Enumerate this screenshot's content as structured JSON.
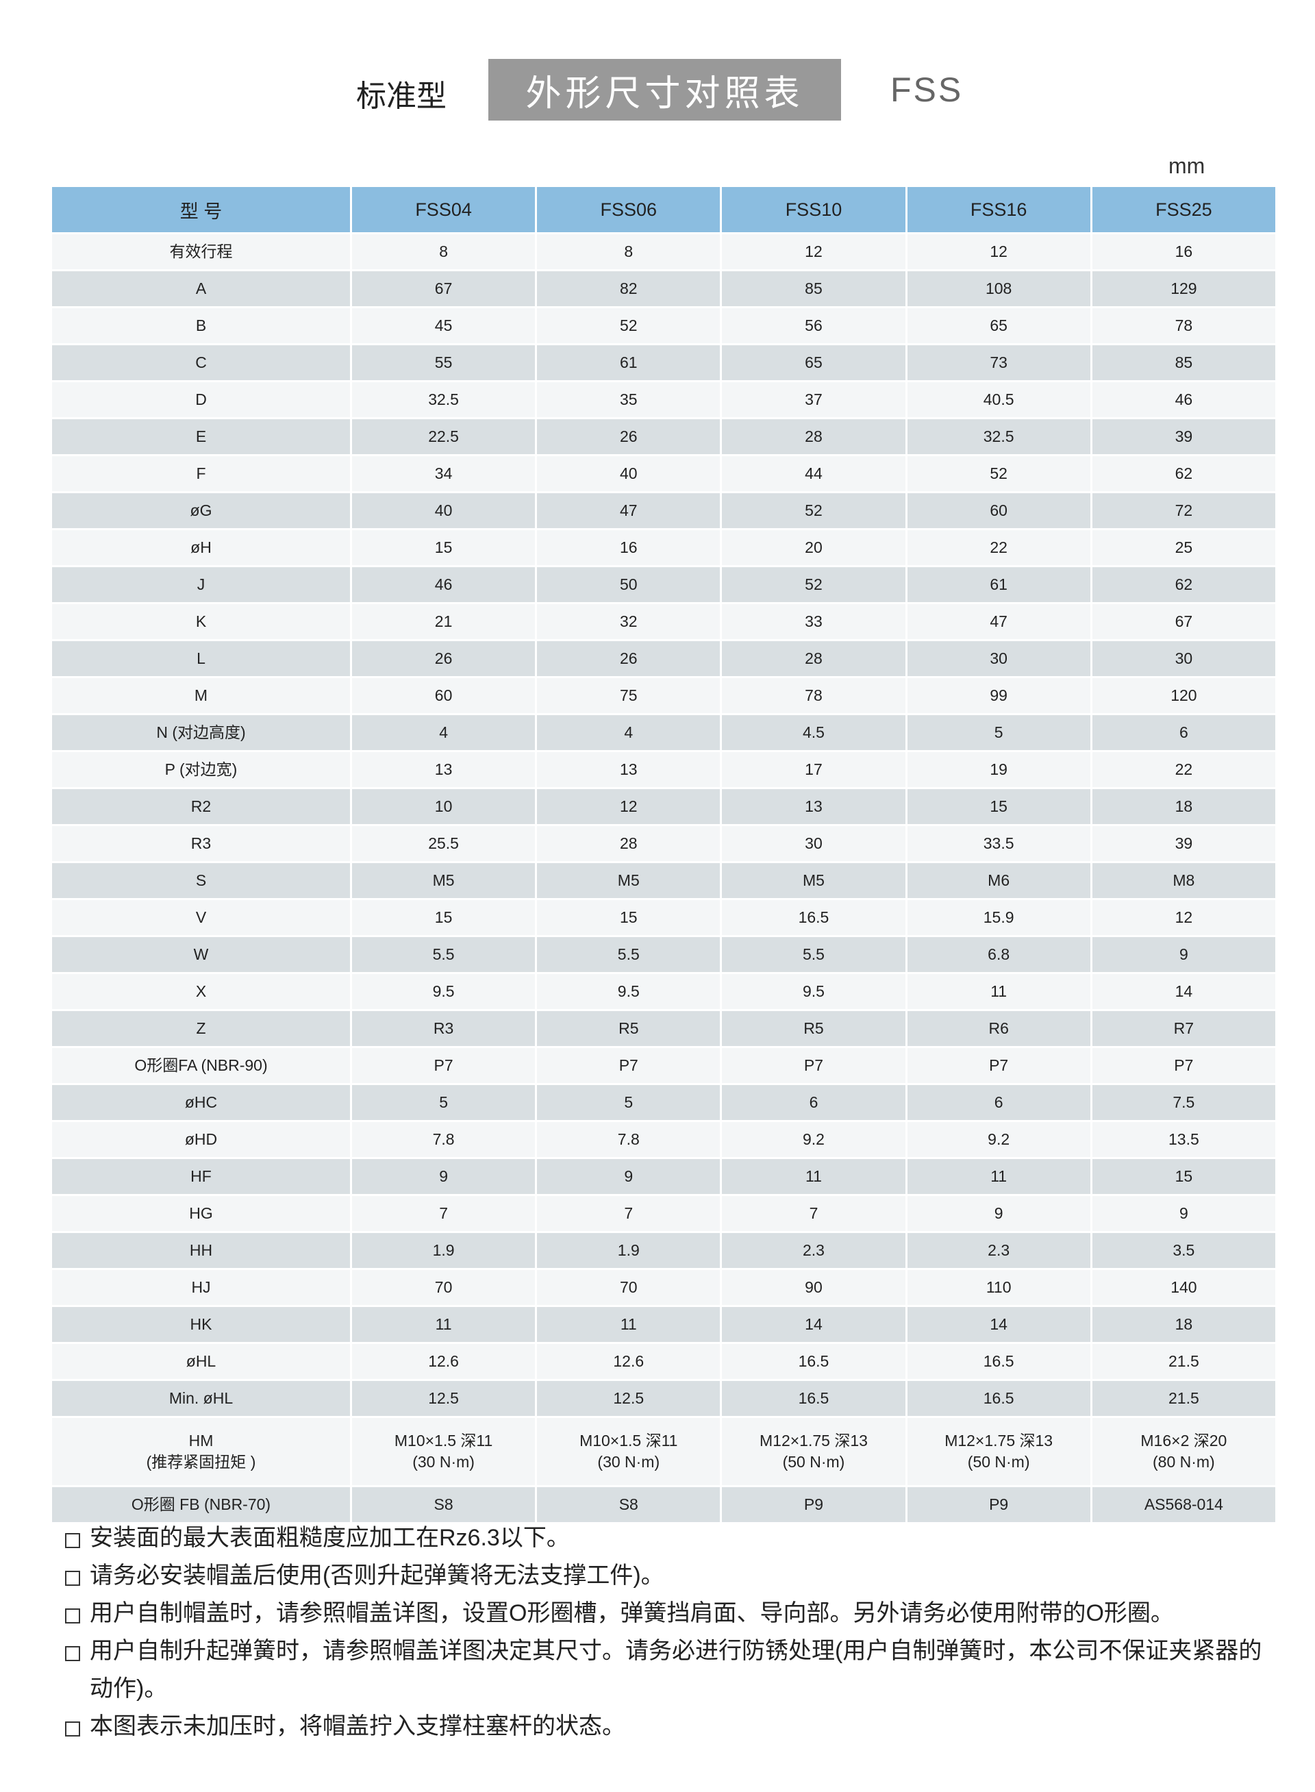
{
  "title": {
    "left": "标准型",
    "main": "外形尺寸对照表",
    "right": "FSS"
  },
  "unit": "mm",
  "colors": {
    "header": "#8bbde0",
    "row_light": "#f4f6f7",
    "row_dark": "#d9dfe2",
    "title_box": "#999999"
  },
  "table": {
    "headers": [
      "型  号",
      "FSS04",
      "FSS06",
      "FSS10",
      "FSS16",
      "FSS25"
    ],
    "rows": [
      {
        "label": "有效行程",
        "values": [
          "8",
          "8",
          "12",
          "12",
          "16"
        ]
      },
      {
        "label": "A",
        "values": [
          "67",
          "82",
          "85",
          "108",
          "129"
        ]
      },
      {
        "label": "B",
        "values": [
          "45",
          "52",
          "56",
          "65",
          "78"
        ]
      },
      {
        "label": "C",
        "values": [
          "55",
          "61",
          "65",
          "73",
          "85"
        ]
      },
      {
        "label": "D",
        "values": [
          "32.5",
          "35",
          "37",
          "40.5",
          "46"
        ]
      },
      {
        "label": "E",
        "values": [
          "22.5",
          "26",
          "28",
          "32.5",
          "39"
        ]
      },
      {
        "label": "F",
        "values": [
          "34",
          "40",
          "44",
          "52",
          "62"
        ]
      },
      {
        "label": "øG",
        "values": [
          "40",
          "47",
          "52",
          "60",
          "72"
        ]
      },
      {
        "label": "øH",
        "values": [
          "15",
          "16",
          "20",
          "22",
          "25"
        ]
      },
      {
        "label": "J",
        "values": [
          "46",
          "50",
          "52",
          "61",
          "62"
        ]
      },
      {
        "label": "K",
        "values": [
          "21",
          "32",
          "33",
          "47",
          "67"
        ]
      },
      {
        "label": "L",
        "values": [
          "26",
          "26",
          "28",
          "30",
          "30"
        ]
      },
      {
        "label": "M",
        "values": [
          "60",
          "75",
          "78",
          "99",
          "120"
        ]
      },
      {
        "label": "N (对边高度)",
        "values": [
          "4",
          "4",
          "4.5",
          "5",
          "6"
        ]
      },
      {
        "label": "P (对边宽)",
        "values": [
          "13",
          "13",
          "17",
          "19",
          "22"
        ]
      },
      {
        "label": "R2",
        "values": [
          "10",
          "12",
          "13",
          "15",
          "18"
        ]
      },
      {
        "label": "R3",
        "values": [
          "25.5",
          "28",
          "30",
          "33.5",
          "39"
        ]
      },
      {
        "label": "S",
        "values": [
          "M5",
          "M5",
          "M5",
          "M6",
          "M8"
        ]
      },
      {
        "label": "V",
        "values": [
          "15",
          "15",
          "16.5",
          "15.9",
          "12"
        ]
      },
      {
        "label": "W",
        "values": [
          "5.5",
          "5.5",
          "5.5",
          "6.8",
          "9"
        ]
      },
      {
        "label": "X",
        "values": [
          "9.5",
          "9.5",
          "9.5",
          "11",
          "14"
        ]
      },
      {
        "label": "Z",
        "values": [
          "R3",
          "R5",
          "R5",
          "R6",
          "R7"
        ]
      },
      {
        "label": "O形圈FA (NBR-90)",
        "values": [
          "P7",
          "P7",
          "P7",
          "P7",
          "P7"
        ]
      },
      {
        "label": "øHC",
        "values": [
          "5",
          "5",
          "6",
          "6",
          "7.5"
        ]
      },
      {
        "label": "øHD",
        "values": [
          "7.8",
          "7.8",
          "9.2",
          "9.2",
          "13.5"
        ]
      },
      {
        "label": "HF",
        "values": [
          "9",
          "9",
          "11",
          "11",
          "15"
        ]
      },
      {
        "label": "HG",
        "values": [
          "7",
          "7",
          "7",
          "9",
          "9"
        ]
      },
      {
        "label": "HH",
        "values": [
          "1.9",
          "1.9",
          "2.3",
          "2.3",
          "3.5"
        ]
      },
      {
        "label": "HJ",
        "values": [
          "70",
          "70",
          "90",
          "110",
          "140"
        ]
      },
      {
        "label": "HK",
        "values": [
          "11",
          "11",
          "14",
          "14",
          "18"
        ]
      },
      {
        "label": "øHL",
        "values": [
          "12.6",
          "12.6",
          "16.5",
          "16.5",
          "21.5"
        ]
      },
      {
        "label": "Min. øHL",
        "values": [
          "12.5",
          "12.5",
          "16.5",
          "16.5",
          "21.5"
        ]
      }
    ],
    "hm_row": {
      "label": "HM",
      "sublabel": "(推荐紧固扭矩 )",
      "values": [
        "M10×1.5 深11",
        "M10×1.5 深11",
        "M12×1.75 深13",
        "M12×1.75 深13",
        "M16×2 深20"
      ],
      "subvalues": [
        "(30 N·m)",
        "(30 N·m)",
        "(50 N·m)",
        "(50 N·m)",
        "(80 N·m)"
      ]
    },
    "last_row": {
      "label": "O形圈 FB (NBR-70)",
      "values": [
        "S8",
        "S8",
        "P9",
        "P9",
        "AS568-014"
      ]
    }
  },
  "notes": [
    "安装面的最大表面粗糙度应加工在Rz6.3以下。",
    "请务必安装帽盖后使用(否则升起弹簧将无法支撑工件)。",
    "用户自制帽盖时，请参照帽盖详图，设置O形圈槽，弹簧挡肩面、导向部。另外请务必使用附带的O形圈。",
    "用户自制升起弹簧时，请参照帽盖详图决定其尺寸。请务必进行防锈处理(用户自制弹簧时，本公司不保证夹紧器的动作)。",
    "本图表示未加压时，将帽盖拧入支撑柱塞杆的状态。"
  ]
}
